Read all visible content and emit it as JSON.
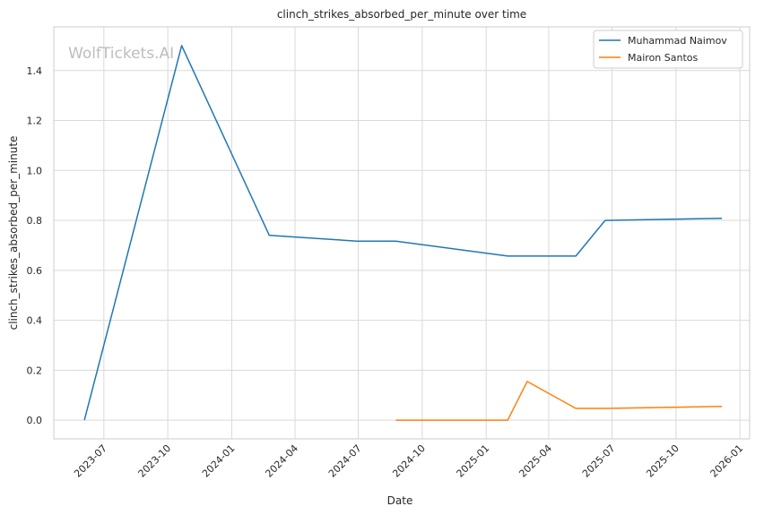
{
  "chart_data": {
    "type": "line",
    "title": "clinch_strikes_absorbed_per_minute over time",
    "xlabel": "Date",
    "ylabel": "clinch_strikes_absorbed_per_minute",
    "watermark": "WolfTickets.AI",
    "xlim": [
      "2023-04-20",
      "2026-01-15"
    ],
    "ylim": [
      -0.075,
      1.575
    ],
    "x_ticks": [
      "2023-07",
      "2023-10",
      "2024-01",
      "2024-04",
      "2024-07",
      "2024-10",
      "2025-01",
      "2025-04",
      "2025-07",
      "2025-10",
      "2026-01"
    ],
    "y_ticks": [
      "0.0",
      "0.2",
      "0.4",
      "0.6",
      "0.8",
      "1.0",
      "1.2",
      "1.4"
    ],
    "grid": true,
    "legend_position": "top-right",
    "series": [
      {
        "name": "Muhammad Naimov",
        "color": "#1f77b4",
        "points": [
          {
            "x": "2023-06-03",
            "y": 0.0
          },
          {
            "x": "2023-10-21",
            "y": 1.5
          },
          {
            "x": "2024-02-24",
            "y": 0.74
          },
          {
            "x": "2024-06-29",
            "y": 0.717
          },
          {
            "x": "2024-08-24",
            "y": 0.717
          },
          {
            "x": "2025-02-01",
            "y": 0.657
          },
          {
            "x": "2025-05-10",
            "y": 0.657
          },
          {
            "x": "2025-06-21",
            "y": 0.8
          },
          {
            "x": "2025-12-06",
            "y": 0.808
          }
        ]
      },
      {
        "name": "Mairon Santos",
        "color": "#ff7f0e",
        "points": [
          {
            "x": "2024-08-24",
            "y": 0.0
          },
          {
            "x": "2025-02-01",
            "y": 0.0
          },
          {
            "x": "2025-03-01",
            "y": 0.155
          },
          {
            "x": "2025-05-10",
            "y": 0.047
          },
          {
            "x": "2025-06-21",
            "y": 0.047
          },
          {
            "x": "2025-12-06",
            "y": 0.055
          }
        ]
      }
    ]
  }
}
